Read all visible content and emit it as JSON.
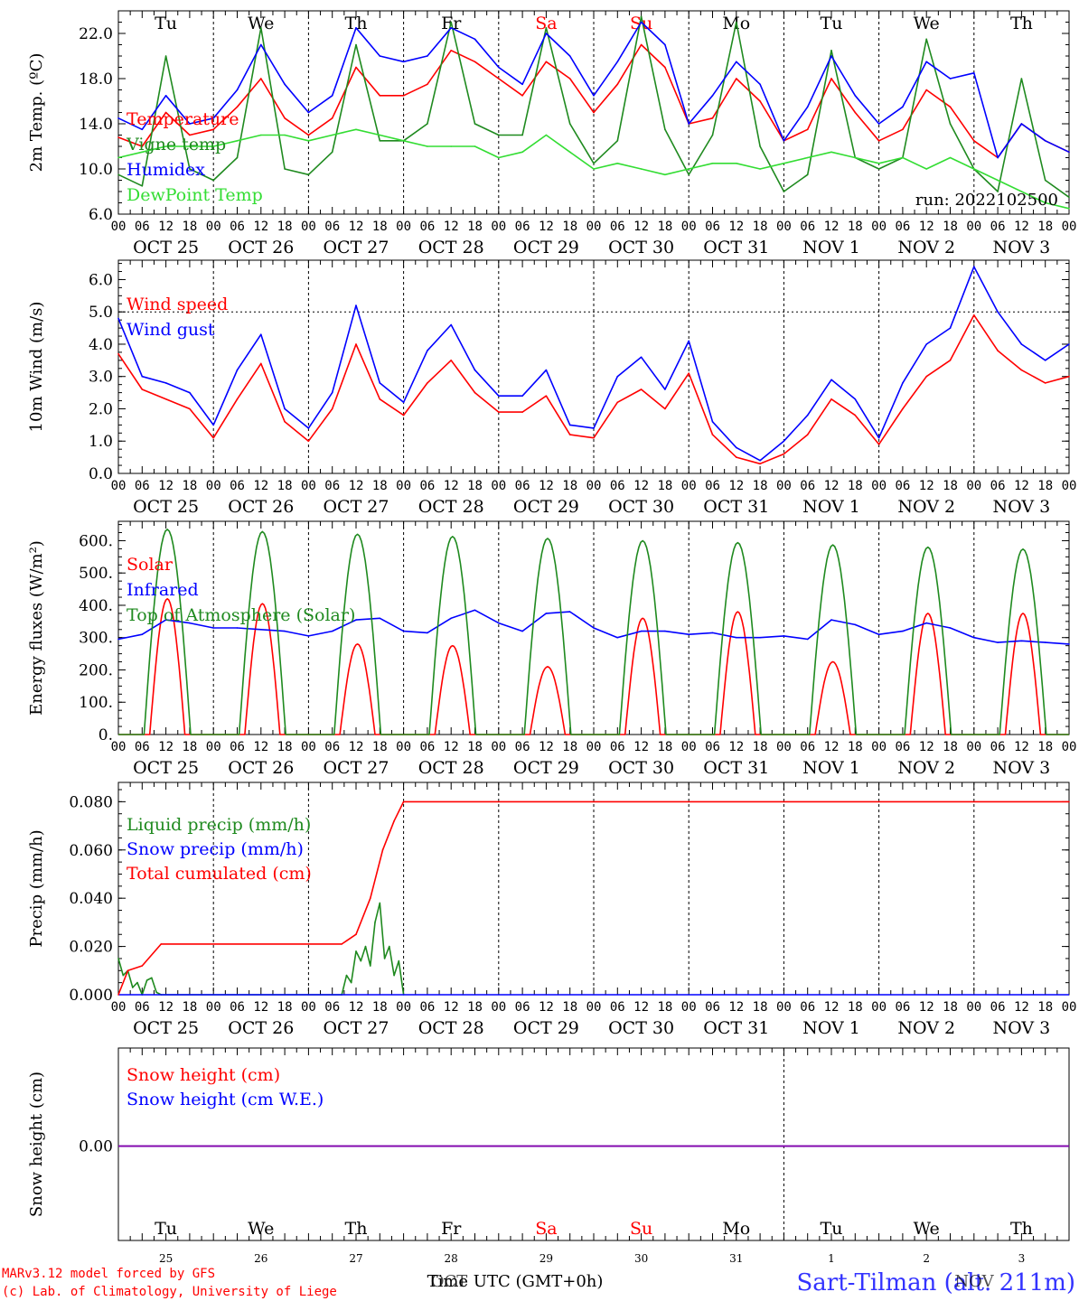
{
  "footer": {
    "credit1": "MARv3.12 model forced by GFS",
    "credit2": "(c) Lab. of Climatology, University of Liege",
    "xlabel": "Time UTC (GMT+0h)",
    "month_label_oct": "OCT",
    "month_label_nov": "NOV",
    "station": "Sart-Tilman (alt. 211m)"
  },
  "colors": {
    "red": "#ff0000",
    "darkgreen": "#1f8a1f",
    "blue": "#0000ff",
    "lightgreen": "#33dd33",
    "purple": "#8800aa",
    "axis": "#000000"
  },
  "day_names": [
    "Tu",
    "We",
    "Th",
    "Fr",
    "Sa",
    "Su",
    "Mo",
    "Tu",
    "We",
    "Th"
  ],
  "weekend_indices": [
    4,
    5
  ],
  "day_labels": [
    "OCT 25",
    "OCT 26",
    "OCT 27",
    "OCT 28",
    "OCT 29",
    "OCT 30",
    "OCT 31",
    "NOV  1",
    "NOV  2",
    "NOV  3"
  ],
  "day_numbers": [
    "25",
    "26",
    "27",
    "28",
    "29",
    "30",
    "31",
    "1",
    "2",
    "3"
  ],
  "hour_ticks": [
    "00",
    "06",
    "12",
    "18"
  ],
  "final_hour_tick": "00",
  "chart_data": [
    {
      "type": "line",
      "ylabel": "2m Temp. (ºC)",
      "ylim": [
        6.0,
        24.0
      ],
      "yticks": [
        "6.0",
        "10.0",
        "14.0",
        "18.0",
        "22.0"
      ],
      "ytick_values": [
        6,
        10,
        14,
        18,
        22
      ],
      "xlim_days": [
        0,
        10
      ],
      "annotation": "run: 2022102500",
      "series": [
        {
          "name": "Temperature",
          "color": "red",
          "x": [
            0,
            0.25,
            0.5,
            0.75,
            1.0,
            1.25,
            1.5,
            1.75,
            2.0,
            2.25,
            2.5,
            2.75,
            3.0,
            3.25,
            3.5,
            3.75,
            4.0,
            4.25,
            4.5,
            4.75,
            5.0,
            5.25,
            5.5,
            5.75,
            6.0,
            6.25,
            6.5,
            6.75,
            7.0,
            7.25,
            7.5,
            7.75,
            8.0,
            8.25,
            8.5,
            8.75,
            9.0,
            9.25,
            9.5,
            9.75,
            10.0
          ],
          "y": [
            12.8,
            12.0,
            15.0,
            13.0,
            13.5,
            15.5,
            18.0,
            14.5,
            13.0,
            14.5,
            19.0,
            16.5,
            16.5,
            17.5,
            20.5,
            19.5,
            18.0,
            16.5,
            19.5,
            18.0,
            15.0,
            17.5,
            21.0,
            19.0,
            14.0,
            14.5,
            18.0,
            16.0,
            12.5,
            13.5,
            18.0,
            15.0,
            12.5,
            13.5,
            17.0,
            15.5,
            12.5,
            11.0,
            14.0,
            12.5,
            11.5
          ]
        },
        {
          "name": "Vigne temp",
          "color": "darkgreen",
          "x": [
            0,
            0.25,
            0.5,
            0.75,
            1.0,
            1.25,
            1.5,
            1.75,
            2.0,
            2.25,
            2.5,
            2.75,
            3.0,
            3.25,
            3.5,
            3.75,
            4.0,
            4.25,
            4.5,
            4.75,
            5.0,
            5.25,
            5.5,
            5.75,
            6.0,
            6.25,
            6.5,
            6.75,
            7.0,
            7.25,
            7.5,
            7.75,
            8.0,
            8.25,
            8.5,
            8.75,
            9.0,
            9.25,
            9.5,
            9.75,
            10.0
          ],
          "y": [
            9.5,
            8.5,
            20.0,
            10.0,
            9.0,
            11.0,
            22.5,
            10.0,
            9.5,
            11.5,
            21.0,
            12.5,
            12.5,
            14.0,
            23.0,
            14.0,
            13.0,
            13.0,
            22.5,
            14.0,
            10.5,
            12.5,
            23.5,
            13.5,
            9.5,
            13.0,
            23.0,
            12.0,
            8.0,
            9.5,
            20.5,
            11.0,
            10.0,
            11.0,
            21.5,
            14.0,
            10.0,
            8.0,
            18.0,
            9.0,
            7.5
          ]
        },
        {
          "name": "Humidex",
          "color": "blue",
          "x": [
            0,
            0.25,
            0.5,
            0.75,
            1.0,
            1.25,
            1.5,
            1.75,
            2.0,
            2.25,
            2.5,
            2.75,
            3.0,
            3.25,
            3.5,
            3.75,
            4.0,
            4.25,
            4.5,
            4.75,
            5.0,
            5.25,
            5.5,
            5.75,
            6.0,
            6.25,
            6.5,
            6.75,
            7.0,
            7.25,
            7.5,
            7.75,
            8.0,
            8.25,
            8.5,
            8.75,
            9.0,
            9.25,
            9.5,
            9.75,
            10.0
          ],
          "y": [
            14.5,
            13.5,
            16.5,
            14.0,
            14.5,
            17.0,
            21.0,
            17.5,
            15.0,
            16.5,
            22.5,
            20.0,
            19.5,
            20.0,
            22.5,
            21.5,
            19.0,
            17.5,
            22.0,
            20.0,
            16.5,
            19.5,
            23.0,
            21.0,
            14.0,
            16.5,
            19.5,
            17.5,
            12.5,
            15.5,
            20.0,
            16.5,
            14.0,
            15.5,
            19.5,
            18.0,
            18.5,
            11.0,
            14.0,
            12.5,
            11.5
          ]
        },
        {
          "name": "DewPoint Temp",
          "color": "lightgreen",
          "x": [
            0,
            0.25,
            0.5,
            0.75,
            1.0,
            1.25,
            1.5,
            1.75,
            2.0,
            2.25,
            2.5,
            2.75,
            3.0,
            3.25,
            3.5,
            3.75,
            4.0,
            4.25,
            4.5,
            4.75,
            5.0,
            5.25,
            5.5,
            5.75,
            6.0,
            6.25,
            6.5,
            6.75,
            7.0,
            7.25,
            7.5,
            7.75,
            8.0,
            8.25,
            8.5,
            8.75,
            9.0,
            9.25,
            9.5,
            9.75,
            10.0
          ],
          "y": [
            11.0,
            11.5,
            12.0,
            12.0,
            12.0,
            12.5,
            13.0,
            13.0,
            12.5,
            13.0,
            13.5,
            13.0,
            12.5,
            12.0,
            12.0,
            12.0,
            11.0,
            11.5,
            13.0,
            11.5,
            10.0,
            10.5,
            10.0,
            9.5,
            10.0,
            10.5,
            10.5,
            10.0,
            10.5,
            11.0,
            11.5,
            11.0,
            10.5,
            11.0,
            10.0,
            11.0,
            10.0,
            9.0,
            8.0,
            7.0,
            6.5
          ]
        }
      ]
    },
    {
      "type": "line",
      "ylabel": "10m Wind (m/s)",
      "ylim": [
        0.0,
        6.6
      ],
      "yticks": [
        "0.0",
        "1.0",
        "2.0",
        "3.0",
        "4.0",
        "5.0",
        "6.0"
      ],
      "ytick_values": [
        0,
        1,
        2,
        3,
        4,
        5,
        6
      ],
      "xlim_days": [
        0,
        10
      ],
      "reference_line": 5.0,
      "series": [
        {
          "name": "Wind speed",
          "color": "red",
          "x": [
            0,
            0.25,
            0.5,
            0.75,
            1.0,
            1.25,
            1.5,
            1.75,
            2.0,
            2.25,
            2.5,
            2.75,
            3.0,
            3.25,
            3.5,
            3.75,
            4.0,
            4.25,
            4.5,
            4.75,
            5.0,
            5.25,
            5.5,
            5.75,
            6.0,
            6.25,
            6.5,
            6.75,
            7.0,
            7.25,
            7.5,
            7.75,
            8.0,
            8.25,
            8.5,
            8.75,
            9.0,
            9.25,
            9.5,
            9.75,
            10.0
          ],
          "y": [
            3.7,
            2.6,
            2.3,
            2.0,
            1.1,
            2.3,
            3.4,
            1.6,
            1.0,
            2.0,
            4.0,
            2.3,
            1.8,
            2.8,
            3.5,
            2.5,
            1.9,
            1.9,
            2.4,
            1.2,
            1.1,
            2.2,
            2.6,
            2.0,
            3.1,
            1.2,
            0.5,
            0.3,
            0.6,
            1.2,
            2.3,
            1.8,
            0.9,
            2.0,
            3.0,
            3.5,
            4.9,
            3.8,
            3.2,
            2.8,
            3.0
          ]
        },
        {
          "name": "Wind gust",
          "color": "blue",
          "x": [
            0,
            0.25,
            0.5,
            0.75,
            1.0,
            1.25,
            1.5,
            1.75,
            2.0,
            2.25,
            2.5,
            2.75,
            3.0,
            3.25,
            3.5,
            3.75,
            4.0,
            4.25,
            4.5,
            4.75,
            5.0,
            5.25,
            5.5,
            5.75,
            6.0,
            6.25,
            6.5,
            6.75,
            7.0,
            7.25,
            7.5,
            7.75,
            8.0,
            8.25,
            8.5,
            8.75,
            9.0,
            9.25,
            9.5,
            9.75,
            10.0
          ],
          "y": [
            4.8,
            3.0,
            2.8,
            2.5,
            1.5,
            3.2,
            4.3,
            2.0,
            1.4,
            2.5,
            5.2,
            2.8,
            2.2,
            3.8,
            4.6,
            3.2,
            2.4,
            2.4,
            3.2,
            1.5,
            1.4,
            3.0,
            3.6,
            2.6,
            4.1,
            1.6,
            0.8,
            0.4,
            1.0,
            1.8,
            2.9,
            2.3,
            1.1,
            2.8,
            4.0,
            4.5,
            6.4,
            5.0,
            4.0,
            3.5,
            4.0
          ]
        }
      ]
    },
    {
      "type": "line",
      "ylabel": "Energy fluxes (W/m²)",
      "ylim": [
        0,
        660
      ],
      "yticks": [
        "0.",
        "100.",
        "200.",
        "300.",
        "400.",
        "500.",
        "600."
      ],
      "ytick_values": [
        0,
        100,
        200,
        300,
        400,
        500,
        600
      ],
      "xlim_days": [
        0,
        10
      ],
      "series": [
        {
          "name": "Solar",
          "color": "red",
          "daily_peak": [
            420,
            405,
            280,
            275,
            210,
            360,
            380,
            225,
            375,
            375
          ],
          "sunrise_day_frac": 0.33,
          "sunset_day_frac": 0.7
        },
        {
          "name": "Infrared",
          "color": "blue",
          "x": [
            0,
            0.25,
            0.5,
            0.75,
            1.0,
            1.25,
            1.5,
            1.75,
            2.0,
            2.25,
            2.5,
            2.75,
            3.0,
            3.25,
            3.5,
            3.75,
            4.0,
            4.25,
            4.5,
            4.75,
            5.0,
            5.25,
            5.5,
            5.75,
            6.0,
            6.25,
            6.5,
            6.75,
            7.0,
            7.25,
            7.5,
            7.75,
            8.0,
            8.25,
            8.5,
            8.75,
            9.0,
            9.25,
            9.5,
            9.75,
            10.0
          ],
          "y": [
            295,
            310,
            355,
            345,
            330,
            330,
            325,
            320,
            305,
            320,
            355,
            360,
            320,
            315,
            360,
            385,
            345,
            320,
            375,
            380,
            330,
            300,
            320,
            320,
            310,
            315,
            300,
            300,
            305,
            295,
            355,
            340,
            310,
            320,
            345,
            330,
            300,
            285,
            290,
            285,
            280
          ]
        },
        {
          "name": "Top of Atmosphere (Solar)",
          "color": "darkgreen",
          "daily_peak": [
            635,
            628,
            620,
            613,
            607,
            600,
            594,
            587,
            580,
            574
          ],
          "sunrise_day_frac": 0.27,
          "sunset_day_frac": 0.76
        }
      ]
    },
    {
      "type": "line",
      "ylabel": "Precip (mm/h)",
      "ylim": [
        0.0,
        0.088
      ],
      "yticks": [
        "0.000",
        "0.020",
        "0.040",
        "0.060",
        "0.080"
      ],
      "ytick_values": [
        0,
        0.02,
        0.04,
        0.06,
        0.08
      ],
      "xlim_days": [
        0,
        10
      ],
      "series": [
        {
          "name": "Liquid precip (mm/h)",
          "color": "darkgreen",
          "x": [
            0,
            0.05,
            0.1,
            0.15,
            0.2,
            0.25,
            0.3,
            0.35,
            0.4,
            0.45,
            2.35,
            2.4,
            2.45,
            2.5,
            2.55,
            2.6,
            2.65,
            2.7,
            2.75,
            2.8,
            2.85,
            2.9,
            2.95,
            3.0
          ],
          "y": [
            0.015,
            0.008,
            0.01,
            0.003,
            0.005,
            0.0,
            0.006,
            0.007,
            0.001,
            0.0,
            0.0,
            0.008,
            0.005,
            0.018,
            0.014,
            0.02,
            0.012,
            0.03,
            0.038,
            0.015,
            0.02,
            0.008,
            0.014,
            0.0
          ]
        },
        {
          "name": "Snow precip (mm/h)",
          "color": "blue",
          "x": [
            0,
            10
          ],
          "y": [
            0.0,
            0.0
          ]
        },
        {
          "name": "Total cumulated (cm)",
          "color": "red",
          "x": [
            0,
            0.1,
            0.25,
            0.45,
            2.35,
            2.5,
            2.65,
            2.78,
            2.9,
            3.0,
            10.0
          ],
          "y": [
            0.0,
            0.01,
            0.012,
            0.021,
            0.021,
            0.025,
            0.04,
            0.06,
            0.072,
            0.08,
            0.08
          ]
        }
      ]
    },
    {
      "type": "line",
      "ylabel": "Snow height (cm)",
      "yticks": [
        "0.00"
      ],
      "xlim_days": [
        0,
        10
      ],
      "series": [
        {
          "name": "Snow height (cm)",
          "color": "red",
          "x": [
            0,
            10
          ],
          "y": [
            0,
            0
          ]
        },
        {
          "name": "Snow height (cm W.E.)",
          "color": "blue",
          "x": [
            0,
            10
          ],
          "y": [
            0,
            0
          ]
        }
      ]
    }
  ]
}
